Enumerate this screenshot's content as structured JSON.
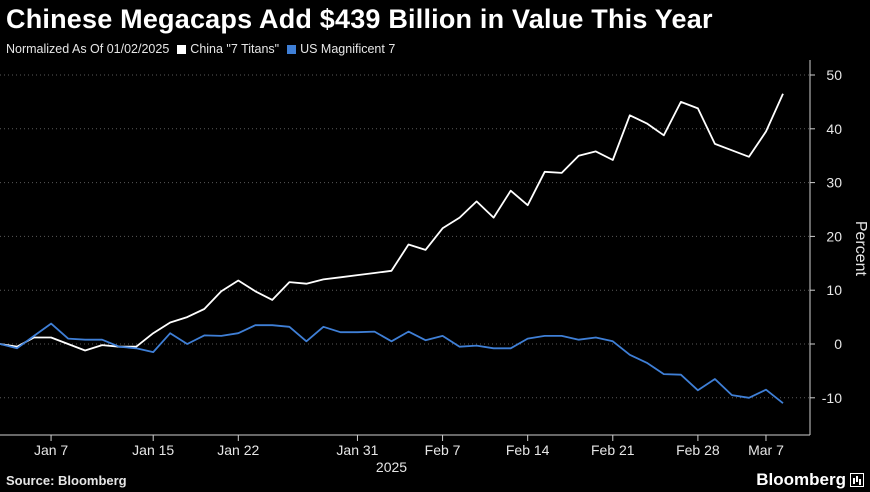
{
  "header": {
    "title": "Chinese Megacaps Add $439 Billion in Value This Year"
  },
  "legend": {
    "note": "Normalized As Of 01/02/2025",
    "items": [
      {
        "label": "China \"7 Titans\"",
        "color": "#ffffff"
      },
      {
        "label": "US Magnificent 7",
        "color": "#3f7fd6"
      }
    ]
  },
  "footer": {
    "source": "Source: Bloomberg",
    "brand": "Bloomberg"
  },
  "chart_data": {
    "type": "line",
    "ylabel": "Percent",
    "xlabel": "2025",
    "ylim": [
      -17,
      52
    ],
    "y_ticks": [
      50,
      40,
      30,
      20,
      10,
      0,
      -10
    ],
    "x_tick_labels": [
      "Jan 7",
      "Jan 15",
      "Jan 22",
      "Jan 31",
      "Feb 7",
      "Feb 14",
      "Feb 21",
      "Feb 28",
      "Mar 7"
    ],
    "x_tick_index": [
      3,
      9,
      14,
      21,
      26,
      31,
      36,
      41,
      45
    ],
    "x_year_label": "2025",
    "x_year_index": 23,
    "grid": "horizontal dotted",
    "series": [
      {
        "name": "China \"7 Titans\"",
        "color": "#ffffff",
        "values": [
          0,
          -0.5,
          1.2,
          1.2,
          0,
          -1.2,
          -0.2,
          -0.5,
          -0.5,
          2,
          4,
          5,
          6.5,
          9.8,
          11.8,
          9.8,
          8.2,
          11.5,
          11.2,
          12,
          12.4,
          12.8,
          13.2,
          13.6,
          18.5,
          17.5,
          21.5,
          23.5,
          26.5,
          23.5,
          28.5,
          25.8,
          32,
          31.8,
          35,
          35.8,
          34.2,
          42.5,
          41,
          38.8,
          45,
          43.8,
          37.2,
          36,
          34.8,
          39.5,
          46.5
        ]
      },
      {
        "name": "US Magnificent 7",
        "color": "#3f7fd6",
        "values": [
          0,
          -0.8,
          1.5,
          3.8,
          1,
          0.8,
          0.8,
          -0.5,
          -0.8,
          -1.5,
          2,
          0,
          1.6,
          1.5,
          2,
          3.5,
          3.5,
          3.2,
          0.5,
          3.2,
          2.2,
          2.2,
          2.3,
          0.5,
          2.3,
          0.7,
          1.5,
          -0.5,
          -0.3,
          -0.8,
          -0.8,
          1,
          1.5,
          1.5,
          0.8,
          1.2,
          0.5,
          -2,
          -3.5,
          -5.6,
          -5.7,
          -8.6,
          -6.5,
          -9.5,
          -10,
          -8.5,
          -11
        ]
      }
    ]
  }
}
